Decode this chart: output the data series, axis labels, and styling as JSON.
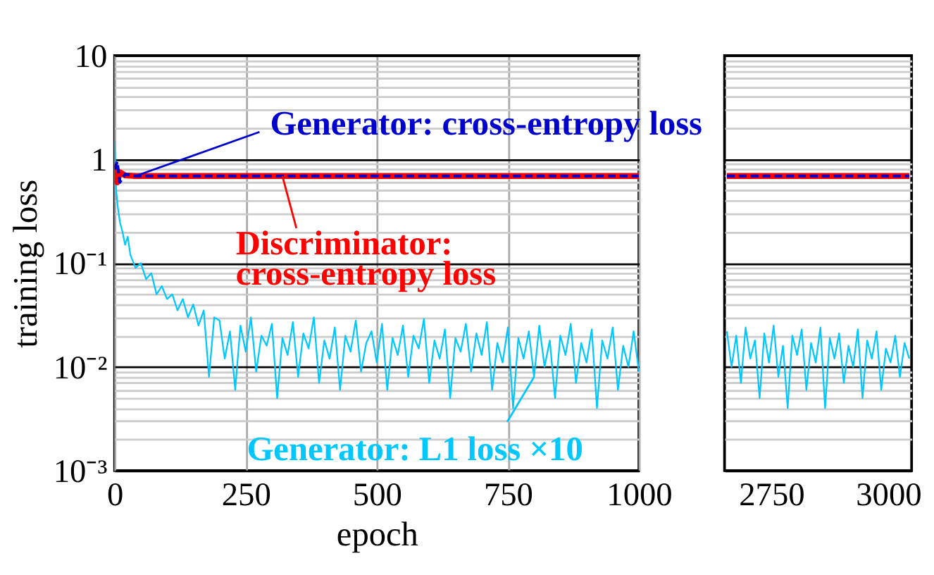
{
  "chart_data": [
    {
      "type": "line",
      "xlabel": "epoch",
      "ylabel": "training loss",
      "log": true,
      "grid": true,
      "xlim": [
        0,
        1000
      ],
      "xticks": [
        0,
        250,
        500,
        750,
        1000
      ],
      "ylim": [
        0.001,
        10
      ],
      "yticks": [
        {
          "value": 0.001,
          "label": "10⁻³"
        },
        {
          "value": 0.002,
          "label": null
        },
        {
          "value": 0.003,
          "label": null
        },
        {
          "value": 0.004,
          "label": null
        },
        {
          "value": 0.005,
          "label": null
        },
        {
          "value": 0.006,
          "label": null
        },
        {
          "value": 0.007,
          "label": null
        },
        {
          "value": 0.008,
          "label": null
        },
        {
          "value": 0.009,
          "label": null
        },
        {
          "value": 0.01,
          "label": "10⁻²"
        },
        {
          "value": 0.02,
          "label": null
        },
        {
          "value": 0.03,
          "label": null
        },
        {
          "value": 0.04,
          "label": null
        },
        {
          "value": 0.05,
          "label": null
        },
        {
          "value": 0.06,
          "label": null
        },
        {
          "value": 0.07,
          "label": null
        },
        {
          "value": 0.08,
          "label": null
        },
        {
          "value": 0.09,
          "label": null
        },
        {
          "value": 0.1,
          "label": "10⁻¹"
        },
        {
          "value": 0.2,
          "label": null
        },
        {
          "value": 0.3,
          "label": null
        },
        {
          "value": 0.4,
          "label": null
        },
        {
          "value": 0.5,
          "label": null
        },
        {
          "value": 0.6,
          "label": null
        },
        {
          "value": 0.7,
          "label": null
        },
        {
          "value": 0.8,
          "label": null
        },
        {
          "value": 0.9,
          "label": null
        },
        1,
        {
          "value": 2,
          "label": null
        },
        {
          "value": 3,
          "label": null
        },
        {
          "value": 4,
          "label": null
        },
        {
          "value": 5,
          "label": null
        },
        {
          "value": 6,
          "label": null
        },
        {
          "value": 7,
          "label": null
        },
        {
          "value": 8,
          "label": null
        },
        {
          "value": 9,
          "label": null
        },
        10
      ],
      "series": [
        {
          "color": "#00c8ff",
          "line_style": "solid",
          "x": [
            0,
            3,
            6,
            10,
            15,
            20,
            25,
            30,
            40,
            50,
            60,
            70,
            80,
            90,
            100,
            110,
            120,
            130,
            140,
            150,
            160,
            170,
            180,
            190,
            200,
            210,
            220,
            230,
            240,
            250,
            260,
            270,
            280,
            290,
            300,
            310,
            320,
            330,
            340,
            350,
            360,
            370,
            380,
            390,
            400,
            410,
            420,
            430,
            440,
            450,
            460,
            470,
            480,
            490,
            500,
            510,
            520,
            530,
            540,
            550,
            560,
            570,
            580,
            590,
            600,
            610,
            620,
            630,
            640,
            650,
            660,
            670,
            680,
            690,
            700,
            710,
            720,
            730,
            740,
            750,
            760,
            770,
            780,
            790,
            800,
            810,
            820,
            830,
            840,
            850,
            860,
            870,
            880,
            890,
            900,
            910,
            920,
            930,
            940,
            950,
            960,
            970,
            980,
            990,
            1000
          ],
          "values": [
            1.5,
            0.5,
            0.35,
            0.25,
            0.2,
            0.15,
            0.18,
            0.12,
            0.09,
            0.1,
            0.07,
            0.08,
            0.05,
            0.06,
            0.045,
            0.05,
            0.035,
            0.045,
            0.03,
            0.04,
            0.025,
            0.035,
            0.008,
            0.03,
            0.028,
            0.012,
            0.022,
            0.006,
            0.025,
            0.014,
            0.03,
            0.009,
            0.02,
            0.016,
            0.026,
            0.005,
            0.019,
            0.013,
            0.027,
            0.008,
            0.021,
            0.015,
            0.03,
            0.007,
            0.018,
            0.012,
            0.024,
            0.006,
            0.02,
            0.014,
            0.028,
            0.009,
            0.017,
            0.022,
            0.011,
            0.026,
            0.006,
            0.019,
            0.013,
            0.025,
            0.008,
            0.02,
            0.015,
            0.029,
            0.007,
            0.018,
            0.012,
            0.023,
            0.005,
            0.019,
            0.014,
            0.026,
            0.009,
            0.021,
            0.013,
            0.027,
            0.006,
            0.017,
            0.011,
            0.024,
            0.004,
            0.019,
            0.012,
            0.022,
            0.008,
            0.025,
            0.01,
            0.018,
            0.005,
            0.02,
            0.013,
            0.026,
            0.007,
            0.017,
            0.011,
            0.023,
            0.004,
            0.018,
            0.012,
            0.024,
            0.006,
            0.016,
            0.01,
            0.022,
            0.009
          ]
        },
        {
          "color": "#ff0000",
          "line_style": "solid",
          "x": [
            0,
            5,
            10,
            20,
            40,
            1000
          ],
          "values": [
            0.9,
            0.6,
            0.75,
            0.7,
            0.69,
            0.69
          ]
        },
        {
          "color": "#0000cc",
          "line_style": "dashed",
          "x": [
            0,
            5,
            10,
            20,
            40,
            1000
          ],
          "values": [
            0.8,
            0.95,
            0.6,
            0.72,
            0.69,
            0.69
          ]
        }
      ],
      "annotations": [
        {
          "text": "Generator: L1 loss ×10",
          "x": 800,
          "y": 0.008
        },
        {
          "text": "Discriminator:\ncross-entropy loss",
          "x": 320,
          "y": 0.69
        },
        {
          "text": "Generator: cross-entropy loss",
          "x": 40,
          "y": 0.69
        }
      ]
    },
    {
      "type": "line",
      "log": true,
      "grid": "y",
      "tick_labels": "x",
      "xlim": [
        2650,
        3050
      ],
      "xticks": [
        2750,
        3000
      ],
      "ylim": [
        0.001,
        10
      ],
      "yticks": [
        0.001,
        {
          "value": 0.002,
          "label": null
        },
        {
          "value": 0.003,
          "label": null
        },
        {
          "value": 0.004,
          "label": null
        },
        {
          "value": 0.005,
          "label": null
        },
        {
          "value": 0.006,
          "label": null
        },
        {
          "value": 0.007,
          "label": null
        },
        {
          "value": 0.008,
          "label": null
        },
        {
          "value": 0.009,
          "label": null
        },
        0.01,
        {
          "value": 0.02,
          "label": null
        },
        {
          "value": 0.03,
          "label": null
        },
        {
          "value": 0.04,
          "label": null
        },
        {
          "value": 0.05,
          "label": null
        },
        {
          "value": 0.06,
          "label": null
        },
        {
          "value": 0.07,
          "label": null
        },
        {
          "value": 0.08,
          "label": null
        },
        {
          "value": 0.09,
          "label": null
        },
        0.1,
        {
          "value": 0.2,
          "label": null
        },
        {
          "value": 0.3,
          "label": null
        },
        {
          "value": 0.4,
          "label": null
        },
        {
          "value": 0.5,
          "label": null
        },
        {
          "value": 0.6,
          "label": null
        },
        {
          "value": 0.7,
          "label": null
        },
        {
          "value": 0.8,
          "label": null
        },
        {
          "value": 0.9,
          "label": null
        },
        1,
        {
          "value": 2,
          "label": null
        },
        {
          "value": 3,
          "label": null
        },
        {
          "value": 4,
          "label": null
        },
        {
          "value": 5,
          "label": null
        },
        {
          "value": 6,
          "label": null
        },
        {
          "value": 7,
          "label": null
        },
        {
          "value": 8,
          "label": null
        },
        {
          "value": 9,
          "label": null
        },
        10
      ],
      "series": [
        {
          "color": "#00c8ff",
          "line_style": "solid",
          "x": [
            2655,
            2665,
            2675,
            2685,
            2695,
            2705,
            2715,
            2725,
            2735,
            2745,
            2755,
            2765,
            2775,
            2785,
            2795,
            2805,
            2815,
            2825,
            2835,
            2845,
            2855,
            2865,
            2875,
            2885,
            2895,
            2905,
            2915,
            2925,
            2935,
            2945,
            2955,
            2965,
            2975,
            2985,
            2995,
            3005,
            3015,
            3025,
            3035,
            3045
          ],
          "values": [
            0.022,
            0.01,
            0.02,
            0.007,
            0.024,
            0.012,
            0.018,
            0.005,
            0.021,
            0.011,
            0.025,
            0.008,
            0.016,
            0.004,
            0.02,
            0.013,
            0.023,
            0.006,
            0.017,
            0.011,
            0.024,
            0.004,
            0.019,
            0.012,
            0.021,
            0.007,
            0.016,
            0.01,
            0.023,
            0.005,
            0.018,
            0.012,
            0.022,
            0.006,
            0.015,
            0.011,
            0.02,
            0.008,
            0.017,
            0.012
          ]
        },
        {
          "color": "#ff0000",
          "line_style": "solid",
          "x": [
            2655,
            3045
          ],
          "values": [
            0.69,
            0.69
          ]
        },
        {
          "color": "#0000cc",
          "line_style": "dashed",
          "x": [
            2655,
            3045
          ],
          "values": [
            0.69,
            0.69
          ]
        }
      ]
    }
  ]
}
